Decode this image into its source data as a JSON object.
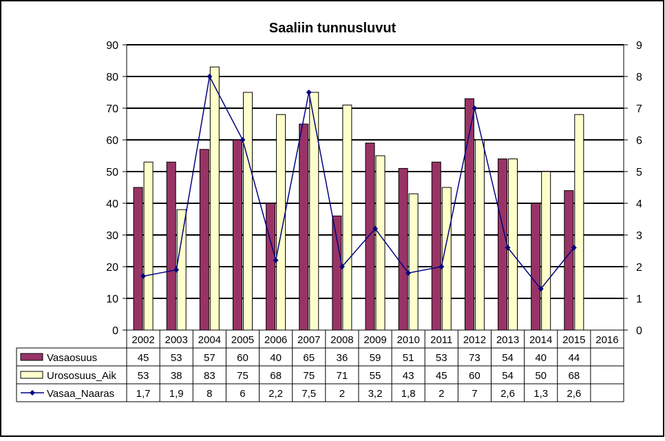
{
  "chart_data": {
    "type": "bar",
    "title": "Saaliin tunnusluvut",
    "categories": [
      "2002",
      "2003",
      "2004",
      "2005",
      "2006",
      "2007",
      "2008",
      "2009",
      "2010",
      "2011",
      "2012",
      "2013",
      "2014",
      "2015",
      "2016"
    ],
    "y_left": {
      "range": [
        0,
        90
      ],
      "ticks": [
        "0",
        "10",
        "20",
        "30",
        "40",
        "50",
        "60",
        "70",
        "80",
        "90"
      ]
    },
    "y_right": {
      "range": [
        0,
        9
      ],
      "ticks": [
        "0",
        "1",
        "2",
        "3",
        "4",
        "5",
        "6",
        "7",
        "8",
        "9"
      ]
    },
    "grid": true,
    "series": [
      {
        "name": "Vasaosuus",
        "type": "bar",
        "axis": "left",
        "color": "#993366",
        "values": [
          45,
          53,
          57,
          60,
          40,
          65,
          36,
          59,
          51,
          53,
          73,
          54,
          40,
          44,
          null
        ],
        "labels": [
          "45",
          "53",
          "57",
          "60",
          "40",
          "65",
          "36",
          "59",
          "51",
          "53",
          "73",
          "54",
          "40",
          "44",
          ""
        ]
      },
      {
        "name": "Urososuus_Aik",
        "type": "bar",
        "axis": "left",
        "color": "#FFFFCC",
        "values": [
          53,
          38,
          83,
          75,
          68,
          75,
          71,
          55,
          43,
          45,
          60,
          54,
          50,
          68,
          null
        ],
        "labels": [
          "53",
          "38",
          "83",
          "75",
          "68",
          "75",
          "71",
          "55",
          "43",
          "45",
          "60",
          "54",
          "50",
          "68",
          ""
        ]
      },
      {
        "name": "Vasaa_Naaras",
        "type": "line",
        "axis": "right",
        "color": "#000080",
        "values": [
          1.7,
          1.9,
          8,
          6,
          2.2,
          7.5,
          2,
          3.2,
          1.8,
          2,
          7,
          2.6,
          1.3,
          2.6,
          null
        ],
        "labels": [
          "1,7",
          "1,9",
          "8",
          "6",
          "2,2",
          "7,5",
          "2",
          "3,2",
          "1,8",
          "2",
          "7",
          "2,6",
          "1,3",
          "2,6",
          ""
        ]
      }
    ]
  }
}
